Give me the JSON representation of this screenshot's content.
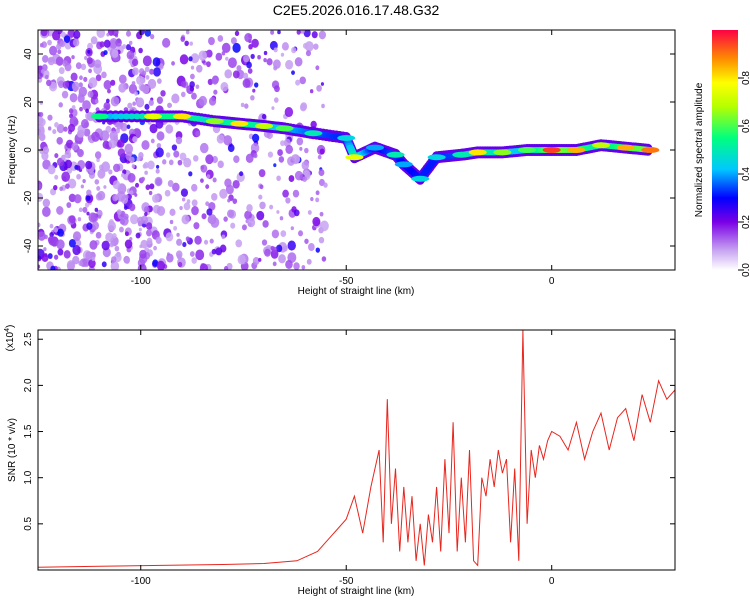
{
  "chart_data": [
    {
      "type": "heatmap",
      "title": "C2E5.2026.016.17.48.G32",
      "xlabel": "Height of straight line (km)",
      "ylabel": "Frequency (Hz)",
      "xlim": [
        -125,
        30
      ],
      "ylim": [
        -50,
        50
      ],
      "xticks": [
        -100,
        -50,
        0
      ],
      "yticks": [
        -40,
        -20,
        0,
        20,
        40
      ],
      "colorbar": {
        "label": "Normalized spectral amplitude",
        "range": [
          0,
          1
        ],
        "ticks": [
          "0.0",
          "0.2",
          "0.4",
          "0.6",
          "0.8"
        ],
        "tick_values": [
          0,
          0.2,
          0.4,
          0.6,
          0.8
        ],
        "colormap": "rainbow"
      },
      "ridge": [
        {
          "x": -110,
          "y": 14,
          "amp": 0.55
        },
        {
          "x": -97,
          "y": 14,
          "amp": 0.75
        },
        {
          "x": -90,
          "y": 14,
          "amp": 0.8
        },
        {
          "x": -82,
          "y": 12,
          "amp": 0.65
        },
        {
          "x": -76,
          "y": 11,
          "amp": 0.8
        },
        {
          "x": -70,
          "y": 10,
          "amp": 0.7
        },
        {
          "x": -65,
          "y": 9,
          "amp": 0.6
        },
        {
          "x": -58,
          "y": 7,
          "amp": 0.5
        },
        {
          "x": -50,
          "y": 5,
          "amp": 0.45
        },
        {
          "x": -48,
          "y": -3,
          "amp": 0.75
        },
        {
          "x": -43,
          "y": 1,
          "amp": 0.4
        },
        {
          "x": -38,
          "y": -2,
          "amp": 0.5
        },
        {
          "x": -36,
          "y": -6,
          "amp": 0.4
        },
        {
          "x": -32,
          "y": -12,
          "amp": 0.45
        },
        {
          "x": -28,
          "y": -3,
          "amp": 0.45
        },
        {
          "x": -22,
          "y": -2,
          "amp": 0.5
        },
        {
          "x": -18,
          "y": -1,
          "amp": 0.8
        },
        {
          "x": -12,
          "y": -1,
          "amp": 0.65
        },
        {
          "x": -6,
          "y": 0,
          "amp": 0.6
        },
        {
          "x": 0,
          "y": 0,
          "amp": 0.95
        },
        {
          "x": 6,
          "y": 0,
          "amp": 0.85
        },
        {
          "x": 12,
          "y": 2,
          "amp": 0.7
        },
        {
          "x": 18,
          "y": 1,
          "amp": 0.85
        },
        {
          "x": 24,
          "y": 0,
          "amp": 0.9
        }
      ]
    },
    {
      "type": "line",
      "title": "",
      "xlabel": "Height of straight line (km)",
      "ylabel": "SNR (10 * v/v)",
      "yscale_label": "(x10",
      "yscale_exponent": "4",
      "xlim": [
        -125,
        30
      ],
      "ylim": [
        0,
        2.6
      ],
      "xticks": [
        -100,
        -50,
        0
      ],
      "yticks": [
        0.5,
        1.0,
        1.5,
        2.0,
        2.5
      ],
      "ytick_labels": [
        "0.5",
        "1.0",
        "1.5",
        "2.0",
        "2.5"
      ],
      "series": [
        {
          "name": "SNR",
          "color": "#e8261e",
          "x": [
            -125,
            -110,
            -95,
            -80,
            -70,
            -62,
            -57,
            -54,
            -52,
            -50,
            -48,
            -46,
            -44,
            -42,
            -41,
            -40,
            -39,
            -38,
            -37,
            -36,
            -35,
            -34,
            -33,
            -32,
            -31,
            -30,
            -29,
            -28,
            -27,
            -26,
            -25,
            -24,
            -23,
            -22,
            -21,
            -20,
            -19,
            -18,
            -17,
            -16,
            -15,
            -14,
            -13,
            -12,
            -11,
            -10,
            -9,
            -8,
            -7,
            -6,
            -5,
            -4,
            -3,
            -2,
            -1,
            0,
            2,
            4,
            6,
            8,
            10,
            12,
            14,
            16,
            18,
            20,
            22,
            24,
            26,
            28,
            30
          ],
          "values": [
            0.03,
            0.04,
            0.05,
            0.06,
            0.07,
            0.1,
            0.2,
            0.35,
            0.45,
            0.55,
            0.8,
            0.4,
            0.9,
            1.3,
            0.3,
            1.85,
            0.5,
            1.1,
            0.2,
            0.9,
            0.3,
            0.8,
            0.1,
            0.5,
            0.05,
            0.6,
            0.3,
            0.9,
            0.2,
            1.2,
            0.4,
            1.6,
            0.2,
            1.0,
            0.3,
            1.3,
            0.1,
            0.05,
            1.0,
            0.8,
            1.2,
            0.9,
            1.3,
            1.05,
            1.2,
            0.3,
            1.1,
            0.1,
            2.6,
            0.5,
            1.3,
            1.0,
            1.35,
            1.2,
            1.4,
            1.5,
            1.45,
            1.3,
            1.6,
            1.2,
            1.5,
            1.7,
            1.3,
            1.65,
            1.75,
            1.4,
            1.9,
            1.6,
            2.05,
            1.85,
            1.95
          ]
        }
      ]
    }
  ]
}
